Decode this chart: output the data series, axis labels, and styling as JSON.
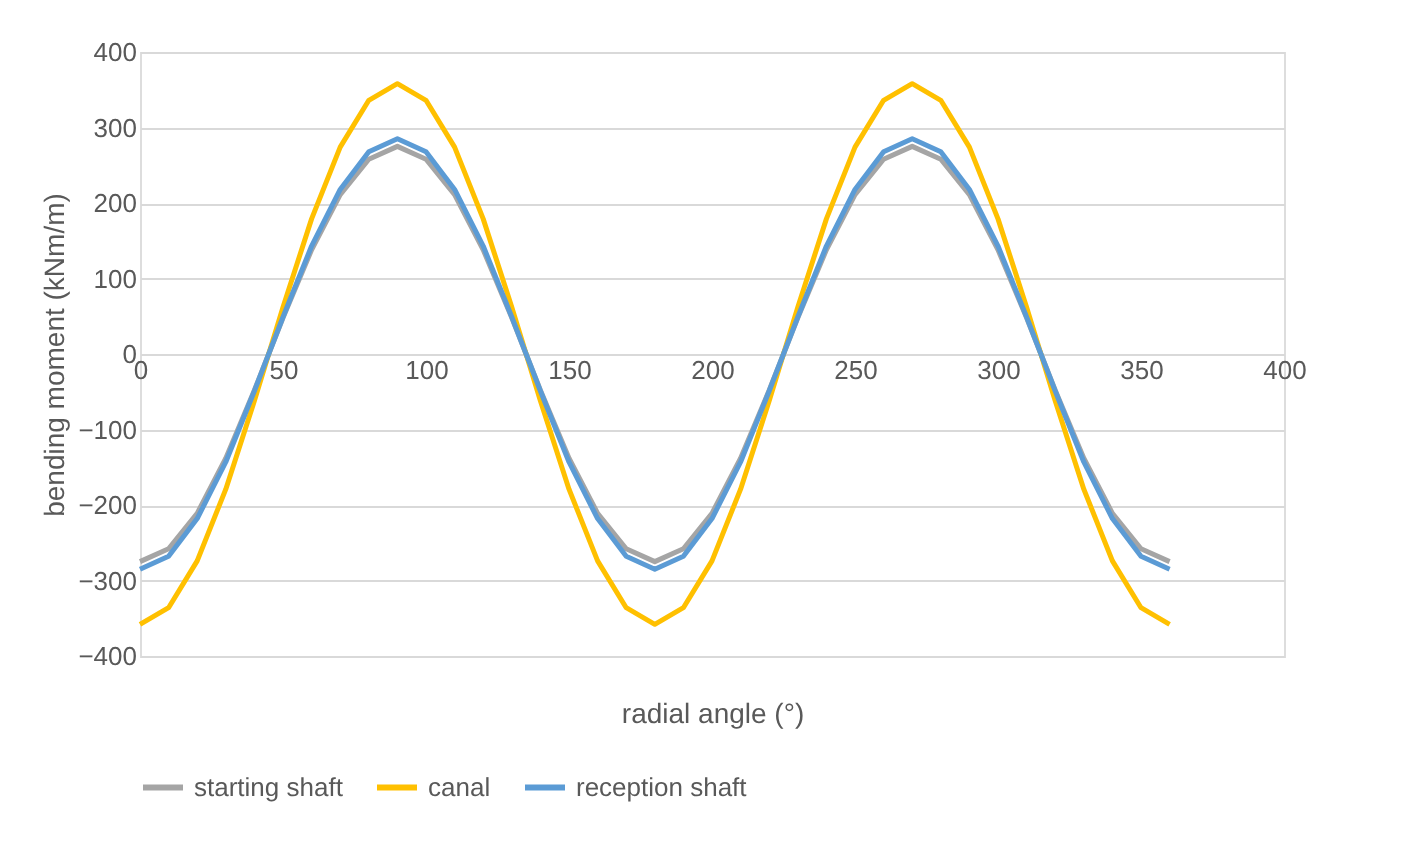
{
  "chart_data": {
    "type": "line",
    "xlabel": "radial angle (°)",
    "ylabel": "bending moment (kNm/m)",
    "x": [
      0,
      10,
      20,
      30,
      40,
      50,
      60,
      70,
      80,
      90,
      100,
      110,
      120,
      130,
      140,
      150,
      160,
      170,
      180,
      190,
      200,
      210,
      220,
      230,
      240,
      250,
      260,
      270,
      280,
      290,
      300,
      310,
      320,
      330,
      340,
      350,
      360
    ],
    "series": [
      {
        "name": "starting shaft",
        "color": "#a5a5a5",
        "values": [
          -275,
          -258,
          -211,
          -138,
          -48,
          48,
          138,
          211,
          258,
          275,
          258,
          211,
          138,
          48,
          -48,
          -138,
          -211,
          -258,
          -275,
          -258,
          -211,
          -138,
          -48,
          48,
          138,
          211,
          258,
          275,
          258,
          211,
          138,
          48,
          -48,
          -138,
          -211,
          -258,
          -275
        ]
      },
      {
        "name": "canal",
        "color": "#ffc000",
        "values": [
          -358,
          -336,
          -274,
          -179,
          -62,
          62,
          179,
          274,
          336,
          358,
          336,
          274,
          179,
          62,
          -62,
          -179,
          -274,
          -336,
          -358,
          -336,
          -274,
          -179,
          -62,
          62,
          179,
          274,
          336,
          358,
          336,
          274,
          179,
          62,
          -62,
          -179,
          -274,
          -336,
          -358
        ]
      },
      {
        "name": "reception shaft",
        "color": "#5b9bd5",
        "values": [
          -285,
          -268,
          -218,
          -143,
          -49,
          49,
          143,
          218,
          268,
          285,
          268,
          218,
          143,
          49,
          -49,
          -143,
          -218,
          -268,
          -285,
          -268,
          -218,
          -143,
          -49,
          49,
          143,
          218,
          268,
          285,
          268,
          218,
          143,
          49,
          -49,
          -143,
          -218,
          -268,
          -285
        ]
      }
    ],
    "xlim": [
      0,
      400
    ],
    "xticks": [
      0,
      50,
      100,
      150,
      200,
      250,
      300,
      350,
      400
    ],
    "ylim": [
      -400,
      400
    ],
    "yticks": [
      -400,
      -300,
      -200,
      -100,
      0,
      100,
      200,
      300,
      400
    ],
    "grid": "y",
    "legend": "bottom",
    "marker": "none",
    "line_style": "solid"
  }
}
